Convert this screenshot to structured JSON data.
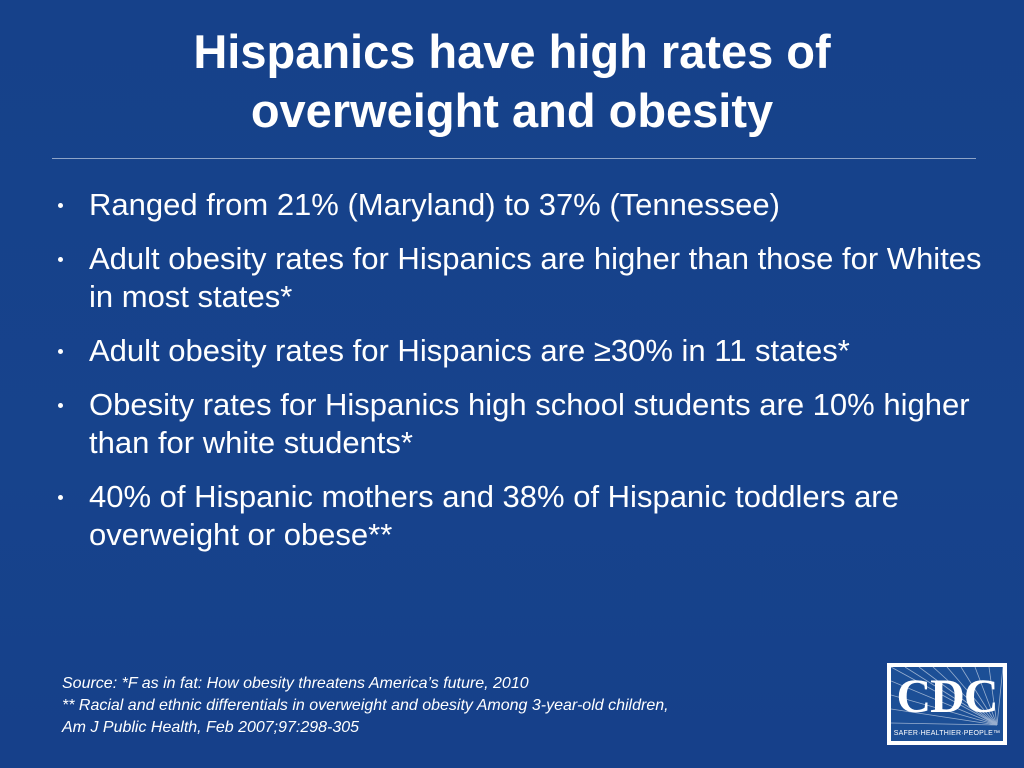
{
  "slide": {
    "title_lines": [
      "Hispanics have high rates of",
      "overweight and obesity"
    ],
    "bullets": [
      "Ranged from 21% (Maryland) to 37% (Tennessee)",
      "Adult obesity rates for Hispanics are higher than those for Whites in most states*",
      "Adult obesity rates for Hispanics are ≥30% in 11 states*",
      "Obesity rates for Hispanics high school students are 10% higher than for white students*",
      "40% of Hispanic mothers and 38% of Hispanic toddlers are overweight or obese**"
    ],
    "source_lines": [
      "Source: *F as in fat: How obesity threatens America’s future, 2010",
      "** Racial and ethnic differentials in overweight and obesity Among 3-year-old children,",
      "Am J Public Health, Feb 2007;97:298-305"
    ]
  },
  "logo": {
    "letters": "CDC",
    "tagline": "SAFER·HEALTHIER·PEOPLE™",
    "icon": "cdc-logo-icon"
  },
  "colors": {
    "background": "#17428a",
    "text": "#ffffff",
    "rule": "#8ea4c8",
    "logo_blue": "#1c4f96"
  }
}
